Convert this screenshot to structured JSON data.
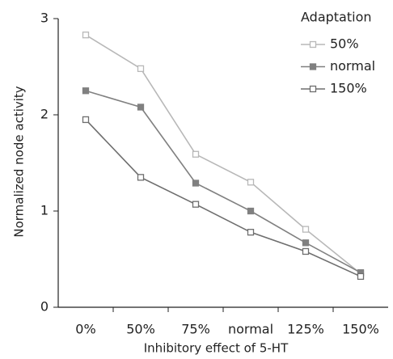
{
  "chart_data": {
    "type": "line",
    "x_label": "Inhibitory effect of 5-HT",
    "y_label": "Normalized node activity",
    "legend_title": "Adaptation",
    "legend": "top-right",
    "categories": [
      "0%",
      "50%",
      "75%",
      "normal",
      "125%",
      "150%"
    ],
    "series": [
      {
        "name": "50%",
        "color": "#b8b8b8",
        "marker_fill": "#ffffff",
        "values": [
          2.83,
          2.48,
          1.59,
          1.3,
          0.81,
          0.35
        ]
      },
      {
        "name": "normal",
        "color": "#808080",
        "marker_fill": "#808080",
        "values": [
          2.25,
          2.08,
          1.29,
          1.0,
          0.67,
          0.36
        ]
      },
      {
        "name": "150%",
        "color": "#6e6e6e",
        "marker_fill": "#ffffff",
        "values": [
          1.95,
          1.35,
          1.07,
          0.78,
          0.58,
          0.32
        ]
      }
    ],
    "ylim": [
      0,
      3
    ],
    "yticks": [
      0,
      1,
      2,
      3
    ]
  }
}
